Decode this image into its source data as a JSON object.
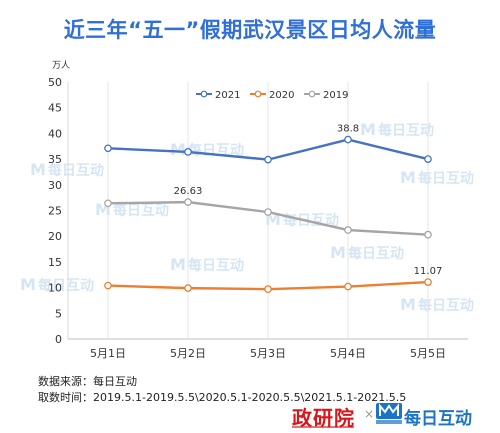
{
  "title": "近三年“五一”假期武汉景区日均人流量",
  "source_line": "数据来源：每日互动",
  "period_line": "取数时间：2019.5.1-2019.5.5\\2020.5.1-2020.5.5\\2021.5.1-2021.5.5",
  "brand_left": "政研院",
  "brand_separator": "×",
  "brand_right": "每日互动",
  "watermark_text": "每日互动",
  "watermark_logo_text": "M",
  "chart_data": {
    "type": "line",
    "title": "近三年“五一”假期武汉景区日均人流量",
    "unit_label": "万人",
    "categories": [
      "5月1日",
      "5月2日",
      "5月3日",
      "5月4日",
      "5月5日"
    ],
    "series": [
      {
        "name": "2021",
        "color": "#4472c4",
        "values": [
          37.1,
          36.4,
          34.9,
          38.8,
          35.0
        ]
      },
      {
        "name": "2020",
        "color": "#ed7d31",
        "values": [
          10.4,
          9.9,
          9.7,
          10.2,
          11.07
        ]
      },
      {
        "name": "2019",
        "color": "#a5a5a5",
        "values": [
          26.4,
          26.63,
          24.7,
          21.2,
          20.3
        ]
      }
    ],
    "data_labels": [
      {
        "series": "2021",
        "index": 3,
        "text": "38.8"
      },
      {
        "series": "2020",
        "index": 4,
        "text": "11.07"
      },
      {
        "series": "2019",
        "index": 1,
        "text": "26.63"
      }
    ],
    "ylim": [
      0,
      50
    ],
    "yticks": [
      0,
      5,
      10,
      15,
      20,
      25,
      30,
      35,
      40,
      45,
      50
    ],
    "ytick_labels": [
      "0",
      "5",
      "10",
      "15",
      "20",
      "25",
      "30",
      "35",
      "40",
      "45",
      "50"
    ],
    "legend_position": "top-center",
    "grid": false,
    "vertical_guides": true
  }
}
